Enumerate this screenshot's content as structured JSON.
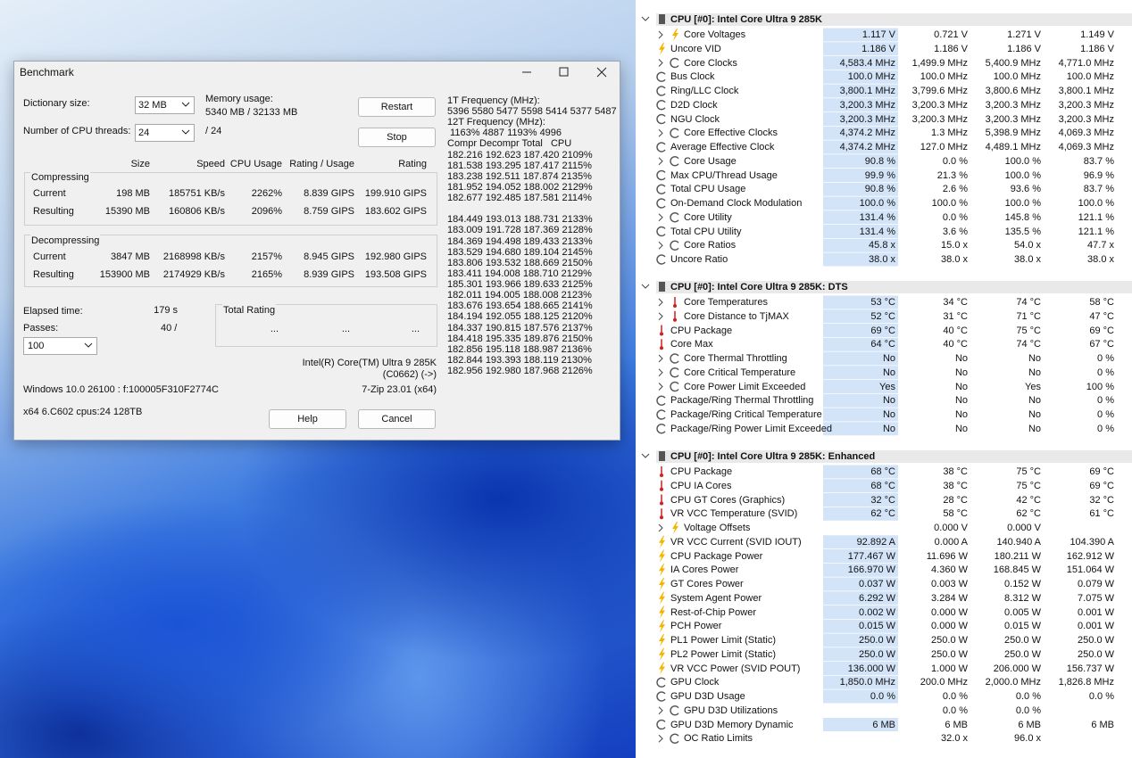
{
  "benchmark": {
    "title": "Benchmark",
    "dictionary_label": "Dictionary size:",
    "dictionary_value": "32 MB",
    "memory_label": "Memory usage:",
    "memory_value": "5340 MB / 32133 MB",
    "threads_label": "Number of CPU threads:",
    "threads_value": "24",
    "threads_total": "/ 24",
    "restart": "Restart",
    "stop": "Stop",
    "columns": [
      "Size",
      "Speed",
      "CPU Usage",
      "Rating / Usage",
      "Rating"
    ],
    "groups": [
      {
        "label": "Compressing",
        "rows": [
          [
            "Current",
            "198 MB",
            "185751 KB/s",
            "2262%",
            "8.839 GIPS",
            "199.910 GIPS"
          ],
          [
            "Resulting",
            "15390 MB",
            "160806 KB/s",
            "2096%",
            "8.759 GIPS",
            "183.602 GIPS"
          ]
        ]
      },
      {
        "label": "Decompressing",
        "rows": [
          [
            "Current",
            "3847 MB",
            "2168998 KB/s",
            "2157%",
            "8.945 GIPS",
            "192.980 GIPS"
          ],
          [
            "Resulting",
            "153900 MB",
            "2174929 KB/s",
            "2165%",
            "8.939 GIPS",
            "193.508 GIPS"
          ]
        ]
      }
    ],
    "elapsed_label": "Elapsed time:",
    "elapsed_value": "179 s",
    "passes_label": "Passes:",
    "passes_value": "40 /",
    "passes_select": "100",
    "total_rating_label": "Total Rating",
    "total_rating_values": [
      "...",
      "...",
      "..."
    ],
    "cpu_name": "Intel(R) Core(TM) Ultra 9 285K",
    "cpu_id": "(C0662) (->)",
    "os_info": "Windows 10.0 26100 : f:100005F310F2774C",
    "version": "7-Zip 23.01 (x64)",
    "system_info": "x64 6.C602 cpus:24 128TB",
    "help": "Help",
    "cancel": "Cancel",
    "log": [
      "1T Frequency (MHz):",
      "5396 5580 5477 5598 5414 5377 5487",
      "12T Frequency (MHz):",
      " 1163% 4887 1193% 4996",
      "Compr Decompr Total   CPU",
      "182.216 192.623 187.420 2109%",
      "181.538 193.295 187.417 2115%",
      "183.238 192.511 187.874 2135%",
      "181.952 194.052 188.002 2129%",
      "182.677 192.485 187.581 2114%",
      "184.449 193.013 188.731 2133%",
      "183.009 191.728 187.369 2128%",
      "184.369 194.498 189.433 2133%",
      "183.529 194.680 189.104 2145%",
      "183.806 193.532 188.669 2150%",
      "183.411 194.008 188.710 2129%",
      "185.301 193.966 189.633 2125%",
      "182.011 194.005 188.008 2123%",
      "183.676 193.654 188.665 2141%",
      "184.194 192.055 188.125 2120%",
      "184.337 190.815 187.576 2137%",
      "184.418 195.335 189.876 2150%",
      "182.856 195.118 188.987 2136%",
      "182.844 193.393 188.119 2130%",
      "182.956 192.980 187.968 2126%"
    ]
  },
  "sensors": {
    "sections": [
      {
        "title": "CPU [#0]: Intel Core Ultra 9 285K",
        "rows": [
          {
            "label": "Core Voltages",
            "values": [
              "1.117 V",
              "0.721 V",
              "1.271 V",
              "1.149 V"
            ]
          },
          {
            "label": "Uncore VID",
            "values": [
              "1.186 V",
              "1.186 V",
              "1.186 V",
              "1.186 V"
            ]
          },
          {
            "label": "Core Clocks",
            "values": [
              "4,583.4 MHz",
              "1,499.9 MHz",
              "5,400.9 MHz",
              "4,771.0 MHz"
            ]
          },
          {
            "label": "Bus Clock",
            "values": [
              "100.0 MHz",
              "100.0 MHz",
              "100.0 MHz",
              "100.0 MHz"
            ]
          },
          {
            "label": "Ring/LLC Clock",
            "values": [
              "3,800.1 MHz",
              "3,799.6 MHz",
              "3,800.6 MHz",
              "3,800.1 MHz"
            ]
          },
          {
            "label": "D2D Clock",
            "values": [
              "3,200.3 MHz",
              "3,200.3 MHz",
              "3,200.3 MHz",
              "3,200.3 MHz"
            ]
          },
          {
            "label": "NGU Clock",
            "values": [
              "3,200.3 MHz",
              "3,200.3 MHz",
              "3,200.3 MHz",
              "3,200.3 MHz"
            ]
          },
          {
            "label": "Core Effective Clocks",
            "values": [
              "4,374.2 MHz",
              "1.3 MHz",
              "5,398.9 MHz",
              "4,069.3 MHz"
            ]
          },
          {
            "label": "Average Effective Clock",
            "values": [
              "4,374.2 MHz",
              "127.0 MHz",
              "4,489.1 MHz",
              "4,069.3 MHz"
            ]
          },
          {
            "label": "Core Usage",
            "values": [
              "90.8 %",
              "0.0 %",
              "100.0 %",
              "83.7 %"
            ]
          },
          {
            "label": "Max CPU/Thread Usage",
            "values": [
              "99.9 %",
              "21.3 %",
              "100.0 %",
              "96.9 %"
            ]
          },
          {
            "label": "Total CPU Usage",
            "values": [
              "90.8 %",
              "2.6 %",
              "93.6 %",
              "83.7 %"
            ]
          },
          {
            "label": "On-Demand Clock Modulation",
            "values": [
              "100.0 %",
              "100.0 %",
              "100.0 %",
              "100.0 %"
            ]
          },
          {
            "label": "Core Utility",
            "values": [
              "131.4 %",
              "0.0 %",
              "145.8 %",
              "121.1 %"
            ]
          },
          {
            "label": "Total CPU Utility",
            "values": [
              "131.4 %",
              "3.6 %",
              "135.5 %",
              "121.1 %"
            ]
          },
          {
            "label": "Core Ratios",
            "values": [
              "45.8 x",
              "15.0 x",
              "54.0 x",
              "47.7 x"
            ]
          },
          {
            "label": "Uncore Ratio",
            "values": [
              "38.0 x",
              "38.0 x",
              "38.0 x",
              "38.0 x"
            ]
          }
        ]
      },
      {
        "title": "CPU [#0]: Intel Core Ultra 9 285K: DTS",
        "rows": [
          {
            "label": "Core Temperatures",
            "values": [
              "53 °C",
              "34 °C",
              "74 °C",
              "58 °C"
            ]
          },
          {
            "label": "Core Distance to TjMAX",
            "values": [
              "52 °C",
              "31 °C",
              "71 °C",
              "47 °C"
            ]
          },
          {
            "label": "CPU Package",
            "values": [
              "69 °C",
              "40 °C",
              "75 °C",
              "69 °C"
            ]
          },
          {
            "label": "Core Max",
            "values": [
              "64 °C",
              "40 °C",
              "74 °C",
              "67 °C"
            ]
          },
          {
            "label": "Core Thermal Throttling",
            "values": [
              "No",
              "No",
              "No",
              "0 %"
            ]
          },
          {
            "label": "Core Critical Temperature",
            "values": [
              "No",
              "No",
              "No",
              "0 %"
            ]
          },
          {
            "label": "Core Power Limit Exceeded",
            "values": [
              "Yes",
              "No",
              "Yes",
              "100 %"
            ]
          },
          {
            "label": "Package/Ring Thermal Throttling",
            "values": [
              "No",
              "No",
              "No",
              "0 %"
            ]
          },
          {
            "label": "Package/Ring Critical Temperature",
            "values": [
              "No",
              "No",
              "No",
              "0 %"
            ]
          },
          {
            "label": "Package/Ring Power Limit Exceeded",
            "values": [
              "No",
              "No",
              "No",
              "0 %"
            ]
          }
        ]
      },
      {
        "title": "CPU [#0]: Intel Core Ultra 9 285K: Enhanced",
        "rows": [
          {
            "label": "CPU Package",
            "values": [
              "68 °C",
              "38 °C",
              "75 °C",
              "69 °C"
            ]
          },
          {
            "label": "CPU IA Cores",
            "values": [
              "68 °C",
              "38 °C",
              "75 °C",
              "69 °C"
            ]
          },
          {
            "label": "CPU GT Cores (Graphics)",
            "values": [
              "32 °C",
              "28 °C",
              "42 °C",
              "32 °C"
            ]
          },
          {
            "label": "VR VCC Temperature (SVID)",
            "values": [
              "62 °C",
              "58 °C",
              "62 °C",
              "61 °C"
            ]
          },
          {
            "label": "Voltage Offsets",
            "values": [
              null,
              "0.000 V",
              "0.000 V",
              null
            ]
          },
          {
            "label": "VR VCC Current (SVID IOUT)",
            "values": [
              "92.892 A",
              "0.000 A",
              "140.940 A",
              "104.390 A"
            ]
          },
          {
            "label": "CPU Package Power",
            "values": [
              "177.467 W",
              "11.696 W",
              "180.211 W",
              "162.912 W"
            ]
          },
          {
            "label": "IA Cores Power",
            "values": [
              "166.970 W",
              "4.360 W",
              "168.845 W",
              "151.064 W"
            ]
          },
          {
            "label": "GT Cores Power",
            "values": [
              "0.037 W",
              "0.003 W",
              "0.152 W",
              "0.079 W"
            ]
          },
          {
            "label": "System Agent Power",
            "values": [
              "6.292 W",
              "3.284 W",
              "8.312 W",
              "7.075 W"
            ]
          },
          {
            "label": "Rest-of-Chip Power",
            "values": [
              "0.002 W",
              "0.000 W",
              "0.005 W",
              "0.001 W"
            ]
          },
          {
            "label": "PCH Power",
            "values": [
              "0.015 W",
              "0.000 W",
              "0.015 W",
              "0.001 W"
            ]
          },
          {
            "label": "PL1 Power Limit (Static)",
            "values": [
              "250.0 W",
              "250.0 W",
              "250.0 W",
              "250.0 W"
            ]
          },
          {
            "label": "PL2 Power Limit (Static)",
            "values": [
              "250.0 W",
              "250.0 W",
              "250.0 W",
              "250.0 W"
            ]
          },
          {
            "label": "VR VCC Power (SVID POUT)",
            "values": [
              "136.000 W",
              "1.000 W",
              "206.000 W",
              "156.737 W"
            ]
          },
          {
            "label": "GPU Clock",
            "values": [
              "1,850.0 MHz",
              "200.0 MHz",
              "2,000.0 MHz",
              "1,826.8 MHz"
            ]
          },
          {
            "label": "GPU D3D Usage",
            "values": [
              "0.0 %",
              "0.0 %",
              "0.0 %",
              "0.0 %"
            ]
          },
          {
            "label": "GPU D3D Utilizations",
            "values": [
              null,
              "0.0 %",
              "0.0 %",
              null
            ]
          },
          {
            "label": "GPU D3D Memory Dynamic",
            "values": [
              "6 MB",
              "6 MB",
              "6 MB",
              "6 MB"
            ]
          },
          {
            "label": "OC Ratio Limits",
            "values": [
              null,
              "32.0 x",
              "96.0 x",
              null
            ]
          }
        ]
      }
    ]
  }
}
